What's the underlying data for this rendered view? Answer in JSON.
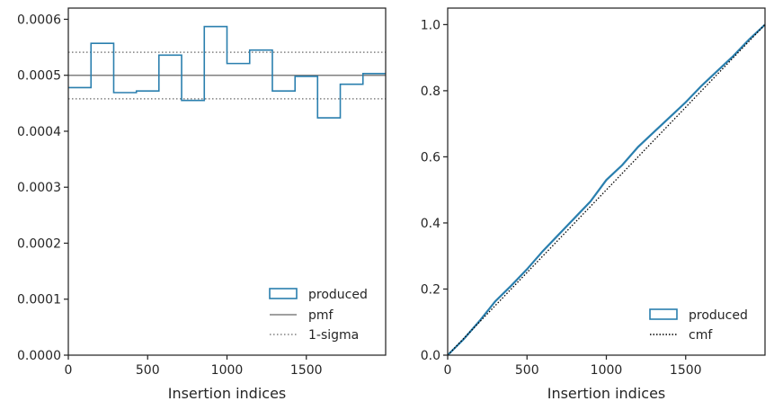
{
  "colors": {
    "step": "#2a7fae",
    "pmf": "#808080",
    "sigma": "#808080",
    "cmf": "#000000",
    "axes": "#262626"
  },
  "chart_data": [
    {
      "type": "step",
      "xlabel": "Insertion indices",
      "ylabel": "",
      "xlim": [
        0,
        2000
      ],
      "ylim": [
        0,
        0.00062
      ],
      "xticks": [
        0,
        500,
        1000,
        1500
      ],
      "xtick_labels": [
        "0",
        "500",
        "1000",
        "1500"
      ],
      "yticks": [
        0,
        0.0001,
        0.0002,
        0.0003,
        0.0004,
        0.0005,
        0.0006
      ],
      "ytick_labels": [
        "0.0000",
        "0.0001",
        "0.0002",
        "0.0003",
        "0.0004",
        "0.0005",
        "0.0006"
      ],
      "bin_edges": [
        0,
        143,
        286,
        429,
        571,
        714,
        857,
        1000,
        1143,
        1286,
        1429,
        1571,
        1714,
        1857,
        2000
      ],
      "values": [
        0.000478,
        0.000557,
        0.000469,
        0.000472,
        0.000536,
        0.000455,
        0.000587,
        0.000521,
        0.000545,
        0.000472,
        0.000498,
        0.000424,
        0.000484,
        0.000503
      ],
      "pmf": 0.0005,
      "sigma_band": [
        0.000458,
        0.000541
      ],
      "grid": false,
      "legend": {
        "placement": "lower-right",
        "entries": [
          "produced",
          "pmf",
          "1-sigma"
        ]
      }
    },
    {
      "type": "line",
      "xlabel": "Insertion indices",
      "ylabel": "",
      "xlim": [
        0,
        2000
      ],
      "ylim": [
        0,
        1.05
      ],
      "xticks": [
        0,
        500,
        1000,
        1500
      ],
      "xtick_labels": [
        "0",
        "500",
        "1000",
        "1500"
      ],
      "yticks": [
        0,
        0.2,
        0.4,
        0.6,
        0.8,
        1.0
      ],
      "ytick_labels": [
        "0.0",
        "0.2",
        "0.4",
        "0.6",
        "0.8",
        "1.0"
      ],
      "series": [
        {
          "name": "produced",
          "x": [
            0,
            100,
            200,
            300,
            400,
            500,
            600,
            700,
            800,
            900,
            1000,
            1100,
            1200,
            1300,
            1400,
            1500,
            1600,
            1700,
            1800,
            1900,
            2000
          ],
          "y": [
            0,
            0.048,
            0.103,
            0.163,
            0.21,
            0.26,
            0.315,
            0.365,
            0.415,
            0.465,
            0.53,
            0.575,
            0.63,
            0.675,
            0.72,
            0.765,
            0.815,
            0.86,
            0.905,
            0.955,
            1.0
          ]
        },
        {
          "name": "cmf",
          "x": [
            0,
            2000
          ],
          "y": [
            0,
            1.0
          ]
        }
      ],
      "grid": false,
      "legend": {
        "placement": "lower-right",
        "entries": [
          "produced",
          "cmf"
        ]
      }
    }
  ]
}
